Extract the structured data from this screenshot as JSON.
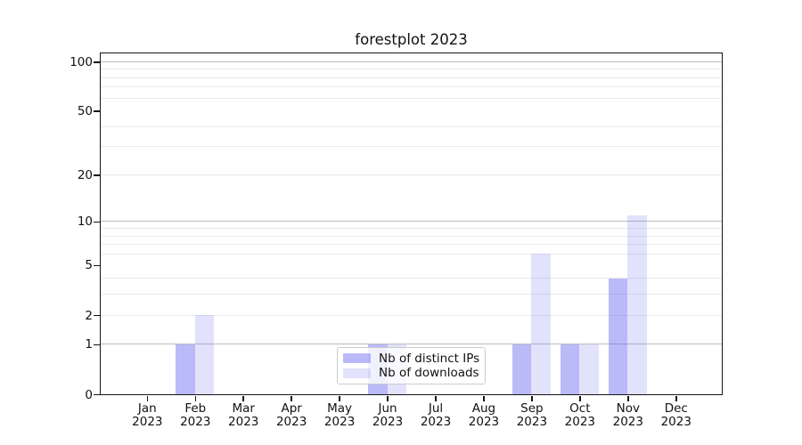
{
  "chart_data": {
    "type": "bar",
    "title": "forestplot 2023",
    "categories": [
      "Jan 2023",
      "Feb 2023",
      "Mar 2023",
      "Apr 2023",
      "May 2023",
      "Jun 2023",
      "Jul 2023",
      "Aug 2023",
      "Sep 2023",
      "Oct 2023",
      "Nov 2023",
      "Dec 2023"
    ],
    "x_tick_month": [
      "Jan",
      "Feb",
      "Mar",
      "Apr",
      "May",
      "Jun",
      "Jul",
      "Aug",
      "Sep",
      "Oct",
      "Nov",
      "Dec"
    ],
    "x_tick_year": "2023",
    "series": [
      {
        "name": "Nb of distinct IPs",
        "color": "rgba(102,102,240,0.45)",
        "values": [
          0,
          1,
          0,
          0,
          0,
          1,
          0,
          0,
          1,
          1,
          4,
          0
        ]
      },
      {
        "name": "Nb of downloads",
        "color": "rgba(102,102,240,0.19)",
        "values": [
          0,
          2,
          0,
          0,
          0,
          1,
          0,
          0,
          6,
          1,
          11,
          0
        ]
      }
    ],
    "scale": "log1p",
    "ylim": [
      0,
      113
    ],
    "xlim": [
      -0.97,
      11.95
    ],
    "bar_width": 0.4,
    "y_ticks": [
      0,
      1,
      2,
      5,
      10,
      20,
      50,
      100
    ],
    "grid_major": [
      1,
      10,
      100
    ],
    "grid_minor": [
      2,
      3,
      4,
      6,
      7,
      8,
      9,
      20,
      30,
      40,
      60,
      70,
      80,
      90
    ],
    "grid": "both",
    "legend_position": "lower center",
    "xlabel": "",
    "ylabel": ""
  },
  "legend": {
    "items": [
      {
        "label": "Nb of distinct IPs"
      },
      {
        "label": "Nb of downloads"
      }
    ]
  },
  "colors": {
    "bar_ips": "rgba(102,102,240,0.45)",
    "bar_downloads": "rgba(102,102,240,0.19)",
    "grid_major": "#bcbcbc",
    "grid_minor": "#e9e9e9",
    "spine": "#161616",
    "text": "#111111",
    "legend_border": "#cccccc"
  }
}
